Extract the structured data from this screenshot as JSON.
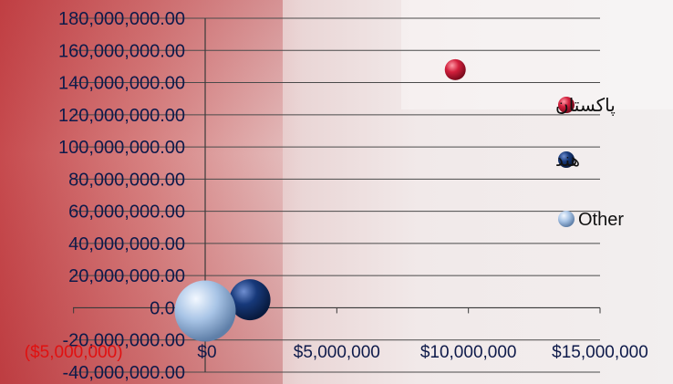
{
  "chart_data": {
    "type": "bubble",
    "y_ticks": [
      "180,000,000.00",
      "160,000,000.00",
      "140,000,000.00",
      "120,000,000.00",
      "100,000,000.00",
      "80,000,000.00",
      "60,000,000.00",
      "40,000,000.00",
      "20,000,000.00",
      "0.00",
      "-20,000,000.00",
      "-40,000,000.00"
    ],
    "x_ticks": [
      "($5,000,000)",
      "$0",
      "$5,000,000",
      "$10,000,000",
      "$15,000,000"
    ],
    "ylim": [
      -40000000,
      180000000
    ],
    "xlim": [
      -5000000,
      15000000
    ],
    "grid": true,
    "legend_position": "right",
    "series": [
      {
        "name": "پاکستان",
        "color": "#d21f3c",
        "points": [
          {
            "x": 9500000,
            "y": 148000000,
            "size": 1
          }
        ]
      },
      {
        "name": "هند",
        "color": "#17397a",
        "points": [
          {
            "x": 1700000,
            "y": 5000000,
            "size": 4
          }
        ]
      },
      {
        "name": "Other",
        "color": "#a8c4e6",
        "points": [
          {
            "x": 0,
            "y": -2000000,
            "size": 9
          }
        ]
      }
    ]
  }
}
